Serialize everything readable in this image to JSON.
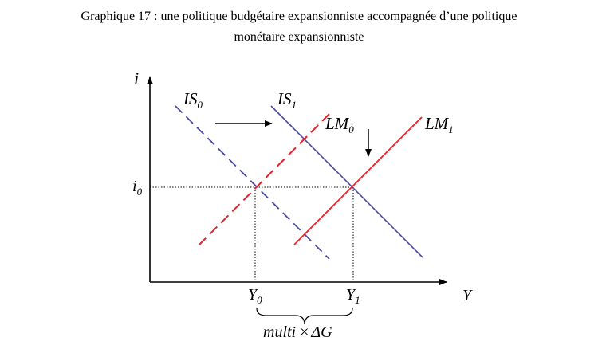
{
  "caption": {
    "line1": "Graphique 17 : une politique budgétaire expansionniste accompagnée d’une politique",
    "line2": "monétaire expansionniste"
  },
  "axes": {
    "y_label": "i",
    "x_label": "Y"
  },
  "curves": {
    "is0": {
      "name": "IS",
      "sub": "0",
      "style": "dashed",
      "color": "#4a4aa0"
    },
    "is1": {
      "name": "IS",
      "sub": "1",
      "style": "solid",
      "color": "#4a4aa0"
    },
    "lm0": {
      "name": "LM",
      "sub": "0",
      "style": "dashed",
      "color": "#e8202a"
    },
    "lm1": {
      "name": "LM",
      "sub": "1",
      "style": "solid",
      "color": "#e8202a"
    }
  },
  "levels": {
    "i0": {
      "name": "i",
      "sub": "0"
    },
    "y0": {
      "name": "Y",
      "sub": "0"
    },
    "y1": {
      "name": "Y",
      "sub": "1"
    }
  },
  "multiplier": {
    "left": "multi",
    "times": "×",
    "right": "ΔG"
  },
  "shifts": {
    "is": "right",
    "lm": "down"
  }
}
